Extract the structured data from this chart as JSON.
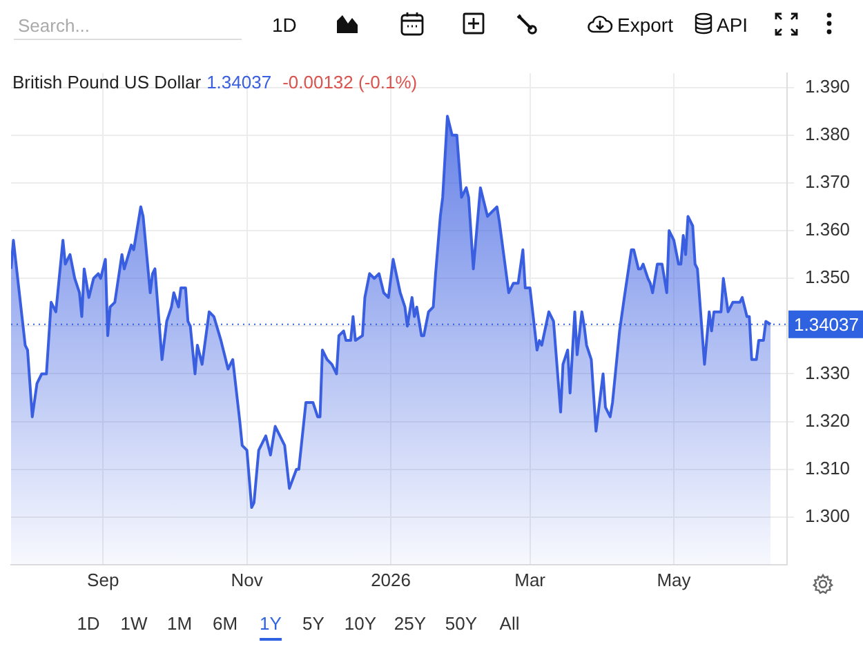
{
  "chart_data": {
    "type": "area",
    "title": "British Pound US Dollar",
    "annotations": [
      "1.34037",
      "-0.00132 (-0.1%)",
      "Search...",
      "1D",
      "Export",
      "API",
      "1D",
      "1W",
      "1M",
      "6M",
      "1Y",
      "5Y",
      "10Y",
      "25Y",
      "50Y",
      "All"
    ],
    "x": [
      "2025-07-24",
      "2025-07-25",
      "2025-07-30",
      "2025-07-31",
      "2025-08-02",
      "2025-08-04",
      "2025-08-06",
      "2025-08-08",
      "2025-08-10",
      "2025-08-12",
      "2025-08-15",
      "2025-08-16",
      "2025-08-18",
      "2025-08-20",
      "2025-08-22",
      "2025-08-23",
      "2025-08-24",
      "2025-08-26",
      "2025-08-28",
      "2025-08-30",
      "2025-08-31",
      "2025-09-02",
      "2025-09-03",
      "2025-09-04",
      "2025-09-06",
      "2025-09-09",
      "2025-09-10",
      "2025-09-13",
      "2025-09-14",
      "2025-09-17",
      "2025-09-18",
      "2025-09-21",
      "2025-09-22",
      "2025-09-23",
      "2025-09-26",
      "2025-09-28",
      "2025-09-30",
      "2025-10-01",
      "2025-10-03",
      "2025-10-04",
      "2025-10-06",
      "2025-10-07",
      "2025-10-08",
      "2025-10-10",
      "2025-10-11",
      "2025-10-13",
      "2025-10-16",
      "2025-10-18",
      "2025-10-21",
      "2025-10-22",
      "2025-10-24",
      "2025-10-26",
      "2025-10-29",
      "2025-10-30",
      "2025-11-01",
      "2025-11-03",
      "2025-11-04",
      "2025-11-06",
      "2025-11-09",
      "2025-11-11",
      "2025-11-13",
      "2025-11-17",
      "2025-11-19",
      "2025-11-22",
      "2025-11-23",
      "2025-11-26",
      "2025-11-29",
      "2025-12-01",
      "2025-12-02",
      "2025-12-03",
      "2025-12-05",
      "2025-12-07",
      "2025-12-09",
      "2025-12-10",
      "2025-12-12",
      "2025-12-13",
      "2025-12-15",
      "2025-12-16",
      "2025-12-17",
      "2025-12-20",
      "2025-12-21",
      "2025-12-23",
      "2025-12-25",
      "2025-12-27",
      "2025-12-29",
      "2025-12-31",
      "2026-01-02",
      "2026-01-05",
      "2026-01-07",
      "2026-01-08",
      "2026-01-10",
      "2026-01-11",
      "2026-01-12",
      "2026-01-14",
      "2026-01-15",
      "2026-01-17",
      "2026-01-19",
      "2026-01-20",
      "2026-01-22",
      "2026-01-23",
      "2026-01-25",
      "2026-01-27",
      "2026-01-29",
      "2026-01-31",
      "2026-02-02",
      "2026-02-03",
      "2026-02-05",
      "2026-02-08",
      "2026-02-11",
      "2026-02-13",
      "2026-02-15",
      "2026-02-16",
      "2026-02-20",
      "2026-02-22",
      "2026-02-24",
      "2026-02-26",
      "2026-02-27",
      "2026-03-01",
      "2026-03-04",
      "2026-03-05",
      "2026-03-06",
      "2026-03-09",
      "2026-03-11",
      "2026-03-14",
      "2026-03-15",
      "2026-03-17",
      "2026-03-18",
      "2026-03-20",
      "2026-03-21",
      "2026-03-23",
      "2026-03-24",
      "2026-03-25",
      "2026-03-27",
      "2026-03-29",
      "2026-04-01",
      "2026-04-02",
      "2026-04-04",
      "2026-04-05",
      "2026-04-08",
      "2026-04-10",
      "2026-04-13",
      "2026-04-14",
      "2026-04-16",
      "2026-04-17",
      "2026-04-18",
      "2026-04-20",
      "2026-04-21",
      "2026-04-22",
      "2026-04-24",
      "2026-04-26",
      "2026-04-28",
      "2026-04-29",
      "2026-05-01",
      "2026-05-03",
      "2026-05-04",
      "2026-05-05",
      "2026-05-06",
      "2026-05-07",
      "2026-05-09",
      "2026-05-10",
      "2026-05-11",
      "2026-05-14",
      "2026-05-16",
      "2026-05-17",
      "2026-05-18",
      "2026-05-21",
      "2026-05-22",
      "2026-05-24",
      "2026-05-26",
      "2026-05-29",
      "2026-05-30",
      "2026-06-01",
      "2026-06-02",
      "2026-06-03",
      "2026-06-05",
      "2026-06-06",
      "2026-06-08",
      "2026-06-09",
      "2026-06-11"
    ],
    "series": [
      {
        "color": "#3a5ee0",
        "values": [
          1.352,
          1.358,
          1.336,
          1.335,
          1.321,
          1.328,
          1.33,
          1.33,
          1.345,
          1.343,
          1.358,
          1.353,
          1.355,
          1.35,
          1.347,
          1.342,
          1.352,
          1.346,
          1.35,
          1.351,
          1.35,
          1.354,
          1.338,
          1.344,
          1.345,
          1.355,
          1.352,
          1.357,
          1.356,
          1.365,
          1.363,
          1.347,
          1.351,
          1.352,
          1.333,
          1.341,
          1.344,
          1.347,
          1.344,
          1.348,
          1.348,
          1.341,
          1.34,
          1.33,
          1.336,
          1.332,
          1.343,
          1.342,
          1.337,
          1.335,
          1.331,
          1.333,
          1.32,
          1.315,
          1.314,
          1.302,
          1.303,
          1.314,
          1.317,
          1.313,
          1.319,
          1.315,
          1.306,
          1.31,
          1.31,
          1.324,
          1.324,
          1.321,
          1.321,
          1.335,
          1.333,
          1.332,
          1.33,
          1.338,
          1.339,
          1.337,
          1.337,
          1.342,
          1.337,
          1.338,
          1.346,
          1.351,
          1.35,
          1.351,
          1.347,
          1.346,
          1.354,
          1.347,
          1.344,
          1.34,
          1.346,
          1.342,
          1.344,
          1.338,
          1.338,
          1.343,
          1.344,
          1.351,
          1.363,
          1.367,
          1.384,
          1.38,
          1.38,
          1.367,
          1.369,
          1.367,
          1.352,
          1.369,
          1.363,
          1.364,
          1.365,
          1.362,
          1.347,
          1.349,
          1.349,
          1.356,
          1.348,
          1.348,
          1.335,
          1.337,
          1.336,
          1.343,
          1.341,
          1.322,
          1.332,
          1.335,
          1.326,
          1.343,
          1.334,
          1.343,
          1.34,
          1.336,
          1.333,
          1.318,
          1.33,
          1.323,
          1.321,
          1.324,
          1.339,
          1.346,
          1.356,
          1.356,
          1.352,
          1.352,
          1.353,
          1.35,
          1.349,
          1.347,
          1.353,
          1.353,
          1.347,
          1.36,
          1.358,
          1.353,
          1.353,
          1.359,
          1.355,
          1.363,
          1.361,
          1.353,
          1.352,
          1.332,
          1.343,
          1.339,
          1.343,
          1.343,
          1.35,
          1.343,
          1.345,
          1.345,
          1.346,
          1.342,
          1.342,
          1.333,
          1.333,
          1.337,
          1.337,
          1.341,
          1.34037
        ]
      }
    ],
    "xlim": [
      "2025-07-24",
      "2026-06-18"
    ],
    "xticks": [
      {
        "value": "2025-09-01",
        "label": "Sep"
      },
      {
        "value": "2025-11-01",
        "label": "Nov"
      },
      {
        "value": "2026-01-01",
        "label": "2026"
      },
      {
        "value": "2026-03-01",
        "label": "Mar"
      },
      {
        "value": "2026-05-01",
        "label": "May"
      }
    ],
    "ylim": [
      1.29,
      1.393
    ],
    "yticks": [
      {
        "value": 1.3,
        "label": "1.300"
      },
      {
        "value": 1.31,
        "label": "1.310"
      },
      {
        "value": 1.32,
        "label": "1.320"
      },
      {
        "value": 1.33,
        "label": "1.330"
      },
      {
        "value": 1.34,
        "label": null
      },
      {
        "value": 1.35,
        "label": "1.350"
      },
      {
        "value": 1.36,
        "label": "1.360"
      },
      {
        "value": 1.37,
        "label": "1.370"
      },
      {
        "value": 1.38,
        "label": "1.380"
      },
      {
        "value": 1.39,
        "label": "1.390"
      }
    ],
    "ref_lines": [
      {
        "axis": "y",
        "value": 1.34037,
        "label": "1.34037",
        "color": "#2f62e0",
        "line_style": "dotted"
      }
    ],
    "grid": true,
    "legend": false,
    "marker": "none",
    "line_style": "solid"
  }
}
